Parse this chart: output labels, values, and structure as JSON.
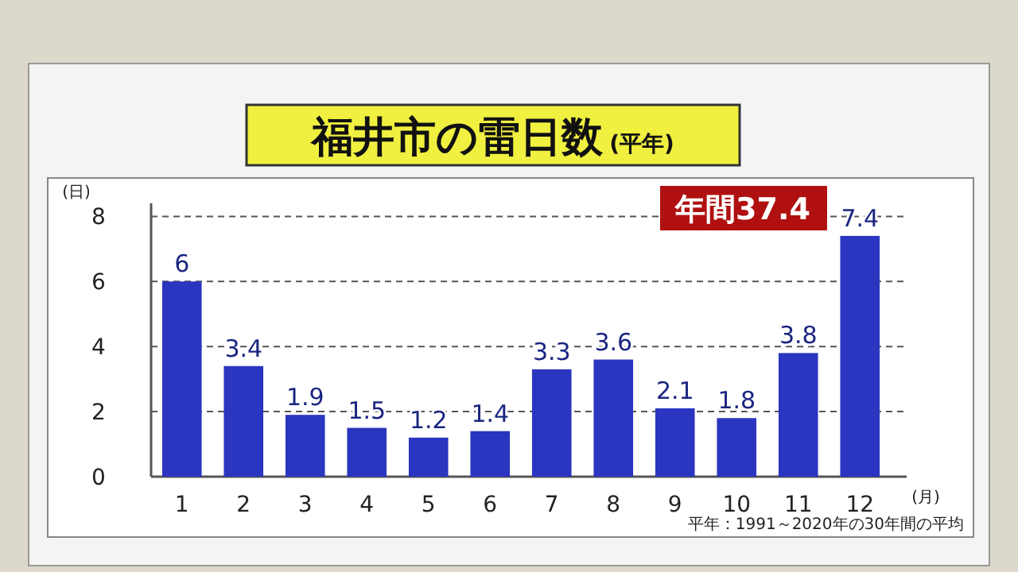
{
  "chart_data": {
    "type": "bar",
    "title": "福井市の雷日数",
    "subtitle": "(平年)",
    "ylabel": "(日)",
    "xlabel": "(月)",
    "categories": [
      "1",
      "2",
      "3",
      "4",
      "5",
      "6",
      "7",
      "8",
      "9",
      "10",
      "11",
      "12"
    ],
    "values": [
      6,
      3.4,
      1.9,
      1.5,
      1.2,
      1.4,
      3.3,
      3.6,
      2.1,
      1.8,
      3.8,
      7.4
    ],
    "color": "#2a35c0",
    "ylim": [
      0,
      8.4
    ],
    "yticks": [
      0,
      2,
      4,
      6,
      8
    ],
    "grid": "y",
    "data_labels": true,
    "annotations": [
      "年間37.4",
      "平年：1991～2020年の30年間の平均"
    ]
  }
}
